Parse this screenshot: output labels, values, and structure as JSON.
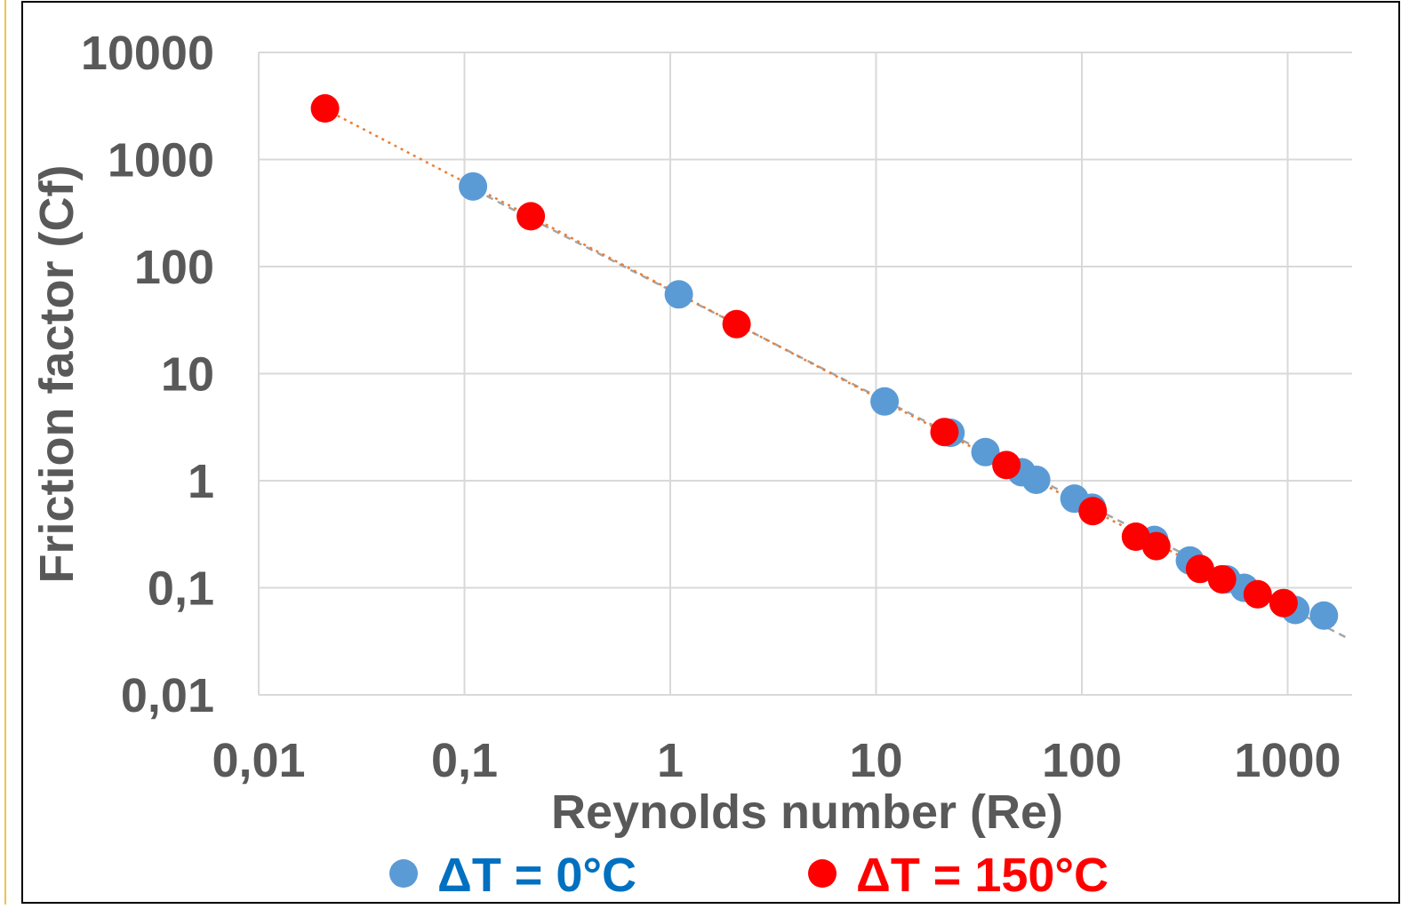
{
  "chart_data": {
    "type": "scatter",
    "title": "",
    "xlabel": "Reynolds number (Re)",
    "ylabel": "Friction factor (Cf)",
    "x_scale": "log",
    "y_scale": "log",
    "xlim": [
      0.01,
      2000
    ],
    "ylim": [
      0.01,
      10000
    ],
    "x_ticks": [
      0.01,
      0.1,
      1,
      10,
      100,
      1000
    ],
    "x_tick_labels": [
      "0,01",
      "0,1",
      "1",
      "10",
      "100",
      "1000"
    ],
    "y_ticks": [
      0.01,
      0.1,
      1,
      10,
      100,
      1000,
      10000
    ],
    "y_tick_labels": [
      "0,01",
      "0,1",
      "1",
      "10",
      "100",
      "1000",
      "10000"
    ],
    "grid": true,
    "legend_position": "bottom",
    "series": [
      {
        "name": "ΔT = 0°C",
        "color": "#5b9bd5",
        "trendline_color": "#a6a6a6",
        "trendline_style": "dashed",
        "points": [
          {
            "x": 0.11,
            "y": 560
          },
          {
            "x": 1.1,
            "y": 55
          },
          {
            "x": 11,
            "y": 5.5
          },
          {
            "x": 23,
            "y": 2.8
          },
          {
            "x": 34,
            "y": 1.85
          },
          {
            "x": 51,
            "y": 1.2
          },
          {
            "x": 60,
            "y": 1.02
          },
          {
            "x": 92,
            "y": 0.68
          },
          {
            "x": 112,
            "y": 0.56
          },
          {
            "x": 225,
            "y": 0.28
          },
          {
            "x": 335,
            "y": 0.18
          },
          {
            "x": 505,
            "y": 0.12
          },
          {
            "x": 615,
            "y": 0.1
          },
          {
            "x": 1090,
            "y": 0.062
          },
          {
            "x": 1500,
            "y": 0.055
          }
        ]
      },
      {
        "name": "ΔT = 150°C",
        "color": "#ff0000",
        "trendline_color": "#ed7d31",
        "trendline_style": "dotted",
        "points": [
          {
            "x": 0.021,
            "y": 3000
          },
          {
            "x": 0.21,
            "y": 295
          },
          {
            "x": 2.1,
            "y": 29
          },
          {
            "x": 21.5,
            "y": 2.85
          },
          {
            "x": 43,
            "y": 1.4
          },
          {
            "x": 113,
            "y": 0.52
          },
          {
            "x": 183,
            "y": 0.3
          },
          {
            "x": 230,
            "y": 0.245
          },
          {
            "x": 375,
            "y": 0.15
          },
          {
            "x": 480,
            "y": 0.12
          },
          {
            "x": 715,
            "y": 0.087
          },
          {
            "x": 955,
            "y": 0.072
          }
        ]
      }
    ]
  }
}
